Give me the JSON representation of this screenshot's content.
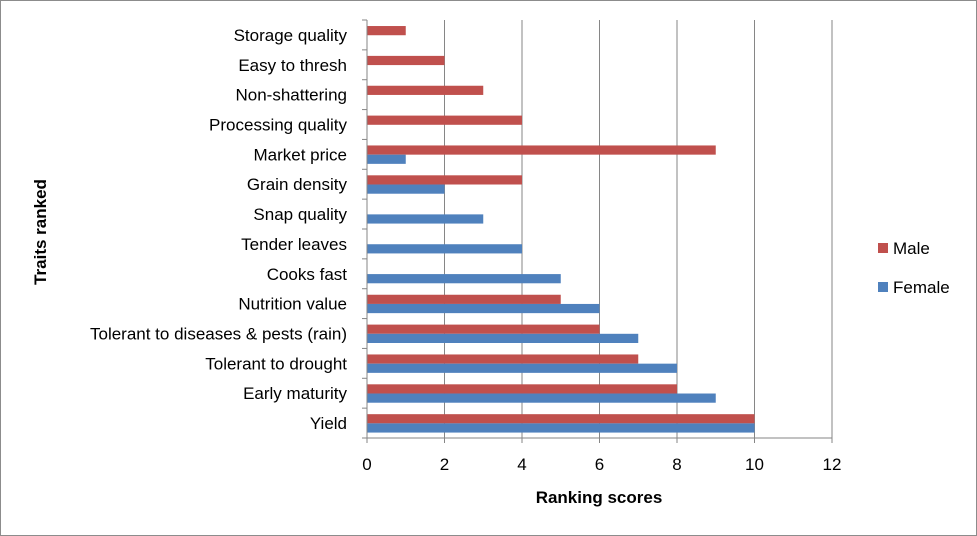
{
  "chart_data": {
    "type": "bar",
    "orientation": "horizontal",
    "categories": [
      "Storage quality",
      "Easy to thresh",
      "Non-shattering",
      "Processing quality",
      "Market price",
      "Grain density",
      "Snap quality",
      "Tender leaves",
      "Cooks fast",
      "Nutrition value",
      "Tolerant to diseases & pests (rain)",
      "Tolerant to drought",
      "Early maturity",
      "Yield"
    ],
    "series": [
      {
        "name": "Male",
        "color": "#c0504d",
        "values": [
          1,
          2,
          3,
          4,
          9,
          4,
          0,
          0,
          0,
          5,
          6,
          7,
          8,
          10
        ]
      },
      {
        "name": "Female",
        "color": "#4f81bd",
        "values": [
          0,
          0,
          0,
          0,
          1,
          2,
          3,
          4,
          5,
          6,
          7,
          8,
          9,
          10
        ]
      }
    ],
    "xlabel": "Ranking scores",
    "ylabel": "Traits ranked",
    "xlim": [
      0,
      12
    ],
    "xticks": [
      0,
      2,
      4,
      6,
      8,
      10,
      12
    ],
    "grid": true,
    "legend_position": "right"
  }
}
